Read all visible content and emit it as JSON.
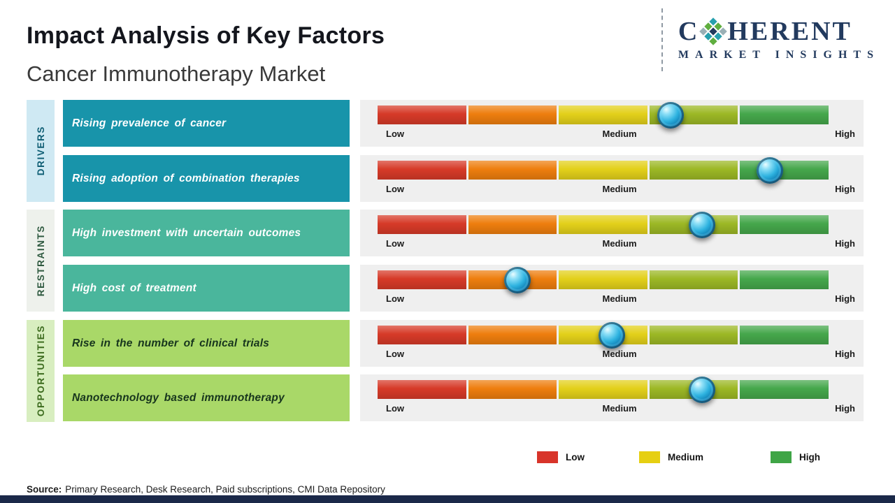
{
  "header": {
    "title": "Impact Analysis of Key Factors",
    "subtitle": "Cancer Immunotherapy Market"
  },
  "logo": {
    "text_before": "C",
    "text_after": "HERENT",
    "subtext": "MARKET INSIGHTS",
    "icon": "diamond-mosaic-icon"
  },
  "scale": {
    "low": "Low",
    "medium": "Medium",
    "high": "High"
  },
  "chart_data": {
    "type": "bar",
    "title": "Impact Analysis of Key Factors",
    "subtitle": "Cancer Immunotherapy Market",
    "x_scale_labels": [
      "Low",
      "Medium",
      "High"
    ],
    "x_range_pct": [
      0,
      100
    ],
    "grid": false,
    "legend_position": "bottom",
    "groups": [
      "DRIVERS",
      "RESTRAINTS",
      "OPPORTUNITIES"
    ],
    "factors": [
      {
        "group": "DRIVERS",
        "label": "Rising prevalence of cancer",
        "impact_pct": 65,
        "impact_level": "Medium-High"
      },
      {
        "group": "DRIVERS",
        "label": "Rising adoption of combination therapies",
        "impact_pct": 87,
        "impact_level": "High"
      },
      {
        "group": "RESTRAINTS",
        "label": "High investment with uncertain outcomes",
        "impact_pct": 72,
        "impact_level": "Medium-High"
      },
      {
        "group": "RESTRAINTS",
        "label": "High cost of treatment",
        "impact_pct": 31,
        "impact_level": "Low-Medium"
      },
      {
        "group": "OPPORTUNITIES",
        "label": "Rise in the number of clinical trials",
        "impact_pct": 52,
        "impact_level": "Medium"
      },
      {
        "group": "OPPORTUNITIES",
        "label": "Nanotechnology based immunotherapy",
        "impact_pct": 72,
        "impact_level": "Medium-High"
      }
    ]
  },
  "legend": [
    {
      "label": "Low",
      "color": "#d8342a"
    },
    {
      "label": "Medium",
      "color": "#e6cf12"
    },
    {
      "label": "High",
      "color": "#3fa546"
    }
  ],
  "source": {
    "label": "Source:",
    "text": "Primary Research, Desk Research, Paid subscriptions, CMI Data Repository"
  },
  "colors": {
    "bar_segments": [
      "#d63a28",
      "#ee7e0e",
      "#e3d01a",
      "#9cb825",
      "#45a74b"
    ],
    "drivers_box": "#1894aa",
    "restraints_box": "#4ab69c",
    "opportunities_box": "#a9d868",
    "footer_bar": "#1b2949",
    "logo_navy": "#223a5e"
  }
}
